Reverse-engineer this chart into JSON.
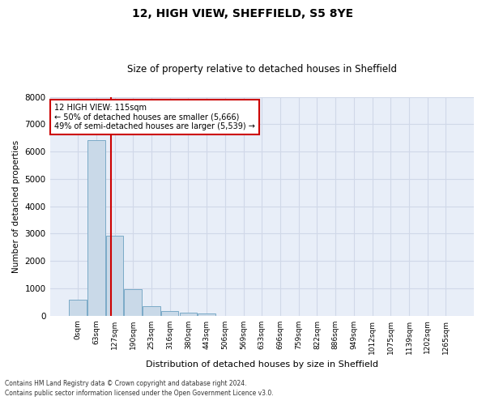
{
  "title1": "12, HIGH VIEW, SHEFFIELD, S5 8YE",
  "title2": "Size of property relative to detached houses in Sheffield",
  "xlabel": "Distribution of detached houses by size in Sheffield",
  "ylabel": "Number of detached properties",
  "bar_labels": [
    "0sqm",
    "63sqm",
    "127sqm",
    "190sqm",
    "253sqm",
    "316sqm",
    "380sqm",
    "443sqm",
    "506sqm",
    "569sqm",
    "633sqm",
    "696sqm",
    "759sqm",
    "822sqm",
    "886sqm",
    "949sqm",
    "1012sqm",
    "1075sqm",
    "1139sqm",
    "1202sqm",
    "1265sqm"
  ],
  "bar_values": [
    570,
    6430,
    2920,
    980,
    360,
    165,
    100,
    70,
    0,
    0,
    0,
    0,
    0,
    0,
    0,
    0,
    0,
    0,
    0,
    0,
    0
  ],
  "bar_color": "#c9d9e8",
  "bar_edge_color": "#7baac7",
  "vline_x": 1.82,
  "vline_color": "#cc0000",
  "annotation_text": "12 HIGH VIEW: 115sqm\n← 50% of detached houses are smaller (5,666)\n49% of semi-detached houses are larger (5,539) →",
  "annotation_box_color": "white",
  "annotation_box_edge": "#cc0000",
  "ylim": [
    0,
    8000
  ],
  "yticks": [
    0,
    1000,
    2000,
    3000,
    4000,
    5000,
    6000,
    7000,
    8000
  ],
  "grid_color": "#d0d8e8",
  "bg_color": "#e8eef8",
  "footer_line1": "Contains HM Land Registry data © Crown copyright and database right 2024.",
  "footer_line2": "Contains public sector information licensed under the Open Government Licence v3.0."
}
